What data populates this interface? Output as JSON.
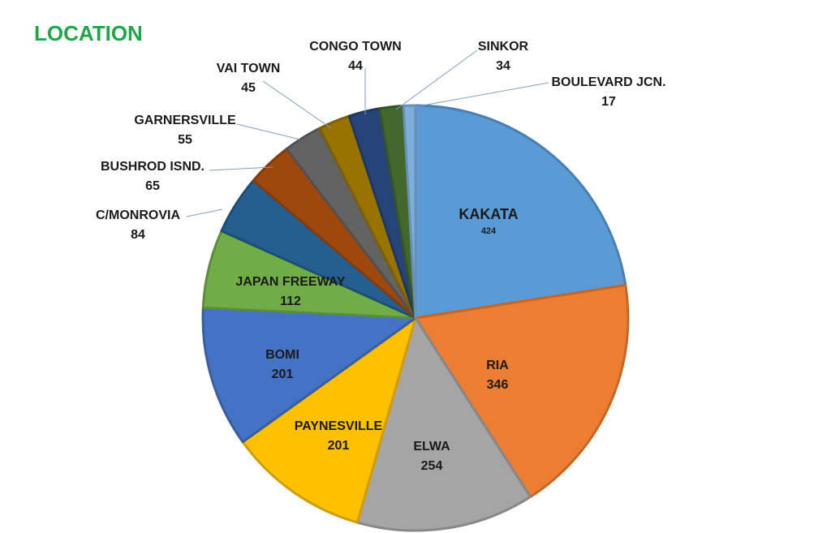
{
  "chart_data": {
    "type": "pie",
    "title": "LOCATION",
    "slices": [
      {
        "label": "KAKATA",
        "value": 424,
        "color": "#5b9bd5"
      },
      {
        "label": "RIA",
        "value": 346,
        "color": "#ed7d31"
      },
      {
        "label": "ELWA",
        "value": 254,
        "color": "#a5a5a5"
      },
      {
        "label": "PAYNESVILLE",
        "value": 201,
        "color": "#ffc000"
      },
      {
        "label": "BOMI",
        "value": 201,
        "color": "#4472c4"
      },
      {
        "label": "JAPAN FREEWAY",
        "value": 112,
        "color": "#70ad47"
      },
      {
        "label": "C/MONROVIA",
        "value": 84,
        "color": "#255e91"
      },
      {
        "label": "BUSHROD ISND.",
        "value": 65,
        "color": "#9e480e"
      },
      {
        "label": "GARNERSVILLE",
        "value": 55,
        "color": "#636363"
      },
      {
        "label": "VAI TOWN",
        "value": 45,
        "color": "#997300"
      },
      {
        "label": "CONGO TOWN",
        "value": 44,
        "color": "#264478"
      },
      {
        "label": "SINKOR",
        "value": 34,
        "color": "#43682b"
      },
      {
        "label": "BOULEVARD JCN.",
        "value": 17,
        "color": "#7cafdd"
      }
    ]
  }
}
